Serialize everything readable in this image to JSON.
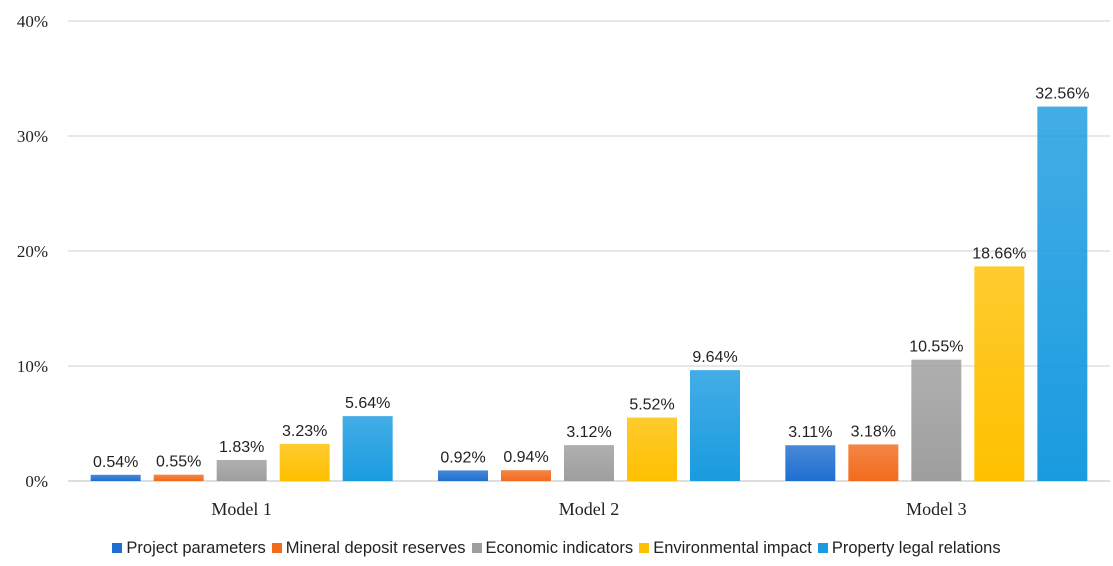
{
  "chart_data": {
    "type": "bar",
    "title": "",
    "xlabel": "",
    "ylabel": "",
    "ylim": [
      0,
      40
    ],
    "yticks": [
      "0%",
      "10%",
      "20%",
      "30%",
      "40%"
    ],
    "grid": true,
    "legend_position": "bottom",
    "categories": [
      "Model 1",
      "Model 2",
      "Model 3"
    ],
    "series": [
      {
        "name": "Project parameters",
        "color": "#1f6fd0",
        "values": [
          0.54,
          0.92,
          3.11
        ],
        "labels": [
          "0.54%",
          "0.92%",
          "3.11%"
        ]
      },
      {
        "name": "Mineral deposit reserves",
        "color": "#f26b1d",
        "values": [
          0.55,
          0.94,
          3.18
        ],
        "labels": [
          "0.55%",
          "0.94%",
          "3.18%"
        ]
      },
      {
        "name": "Economic indicators",
        "color": "#9e9e9e",
        "values": [
          1.83,
          3.12,
          10.55
        ],
        "labels": [
          "1.83%",
          "3.12%",
          "10.55%"
        ]
      },
      {
        "name": "Environmental impact",
        "color": "#ffc000",
        "values": [
          3.23,
          5.52,
          18.66
        ],
        "labels": [
          "3.23%",
          "5.52%",
          "18.66%"
        ]
      },
      {
        "name": "Property legal relations",
        "color": "#1a9be0",
        "values": [
          5.64,
          9.64,
          32.56
        ],
        "labels": [
          "5.64%",
          "9.64%",
          "32.56%"
        ]
      }
    ]
  }
}
